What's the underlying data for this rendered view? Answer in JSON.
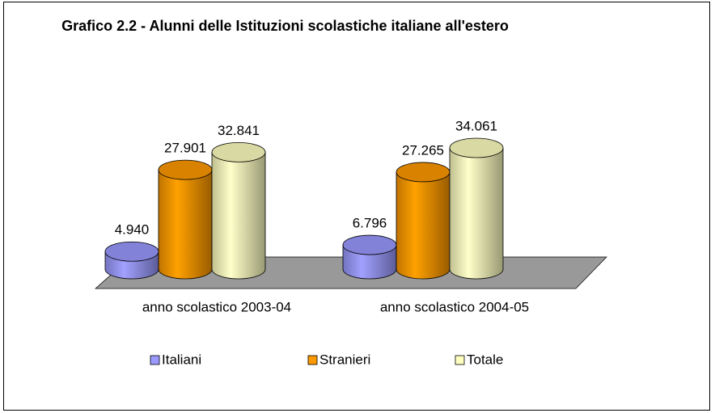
{
  "chart_data": {
    "type": "bar3d",
    "title": "Grafico 2.2 - Alunni delle Istituzioni scolastiche italiane all'estero",
    "categories": [
      "anno scolastico 2003-04",
      "anno scolastico 2004-05"
    ],
    "series": [
      {
        "name": "Italiani",
        "color": "#9999ff",
        "values": [
          4940,
          6796
        ],
        "value_labels": [
          "4.940",
          "6.796"
        ]
      },
      {
        "name": "Stranieri",
        "color": "#ff9900",
        "values": [
          27901,
          27265
        ],
        "value_labels": [
          "27.901",
          "27.265"
        ]
      },
      {
        "name": "Totale",
        "color": "#ffffc0",
        "values": [
          32841,
          34061
        ],
        "value_labels": [
          "32.841",
          "34.061"
        ]
      }
    ],
    "legend": "bottom"
  }
}
